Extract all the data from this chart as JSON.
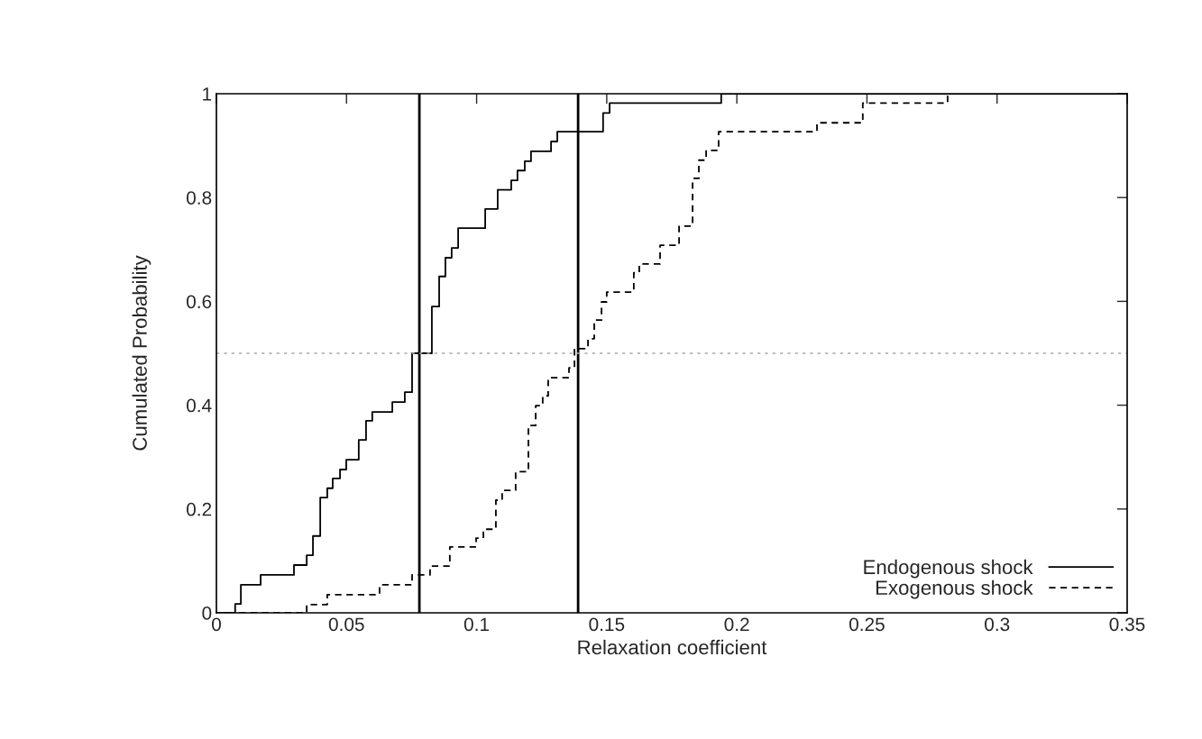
{
  "chart_data": {
    "type": "step",
    "xlabel": "Relaxation coefficient",
    "ylabel": "Cumulated Probability",
    "xlim": [
      0,
      0.35
    ],
    "ylim": [
      0,
      1
    ],
    "xticks": [
      0,
      0.05,
      0.1,
      0.15,
      0.2,
      0.25,
      0.3,
      0.35
    ],
    "yticks": [
      0,
      0.2,
      0.4,
      0.6,
      0.8,
      1
    ],
    "grid": false,
    "legend": "bottom right",
    "series": [
      {
        "name": "Endogenous shock",
        "color": "#000000",
        "line_style": "solid",
        "x": [
          0,
          0.0072,
          0.0094,
          0.017,
          0.0298,
          0.0347,
          0.0371,
          0.0399,
          0.0426,
          0.0447,
          0.0475,
          0.0499,
          0.0547,
          0.0575,
          0.0599,
          0.0676,
          0.0724,
          0.0752,
          0.0828,
          0.0856,
          0.088,
          0.0904,
          0.0929,
          0.1033,
          0.1081,
          0.1133,
          0.1157,
          0.1185,
          0.1209,
          0.1286,
          0.131,
          0.1486,
          0.1511,
          0.194,
          0.35
        ],
        "values": [
          0,
          0.017,
          0.054,
          0.073,
          0.092,
          0.111,
          0.148,
          0.222,
          0.24,
          0.259,
          0.276,
          0.295,
          0.333,
          0.37,
          0.387,
          0.406,
          0.425,
          0.5,
          0.59,
          0.648,
          0.684,
          0.703,
          0.741,
          0.778,
          0.815,
          0.833,
          0.852,
          0.87,
          0.889,
          0.908,
          0.927,
          0.963,
          0.982,
          1.0,
          1.0
        ]
      },
      {
        "name": "Exogenous shock",
        "color": "#000000",
        "line_style": "dashed",
        "x": [
          0,
          0.0347,
          0.0426,
          0.0627,
          0.0752,
          0.0821,
          0.0897,
          0.0998,
          0.1026,
          0.1074,
          0.1098,
          0.115,
          0.1199,
          0.1227,
          0.1254,
          0.1275,
          0.1355,
          0.1376,
          0.1428,
          0.1452,
          0.148,
          0.15,
          0.1604,
          0.1625,
          0.1705,
          0.1778,
          0.183,
          0.1854,
          0.1882,
          0.193,
          0.2308,
          0.2484,
          0.281,
          0.35
        ],
        "values": [
          0,
          0.016,
          0.035,
          0.054,
          0.073,
          0.09,
          0.127,
          0.144,
          0.161,
          0.217,
          0.236,
          0.272,
          0.361,
          0.399,
          0.418,
          0.453,
          0.472,
          0.509,
          0.528,
          0.564,
          0.599,
          0.618,
          0.655,
          0.672,
          0.708,
          0.745,
          0.837,
          0.872,
          0.891,
          0.927,
          0.944,
          0.982,
          1.0,
          1.0
        ]
      }
    ],
    "ref_lines": [
      {
        "axis": "x",
        "value": 0.078,
        "color": "#000000",
        "line_style": "solid"
      },
      {
        "axis": "x",
        "value": 0.139,
        "color": "#000000",
        "line_style": "solid"
      },
      {
        "axis": "y",
        "value": 0.5,
        "color": "#aaaaaa",
        "line_style": "dotted"
      }
    ]
  }
}
